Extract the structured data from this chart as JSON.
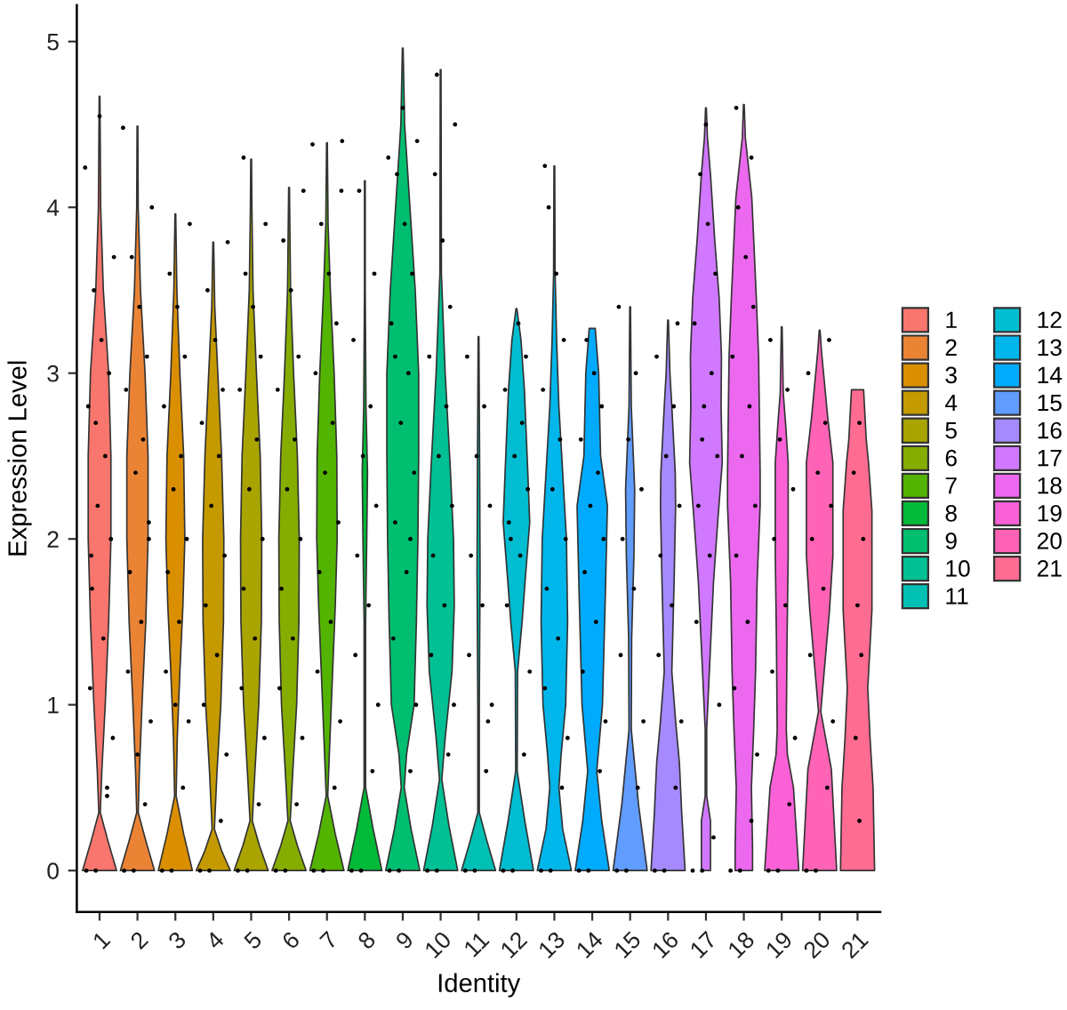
{
  "chart_data": {
    "type": "area",
    "xlabel": "Identity",
    "ylabel": "Expression Level",
    "xlim": [
      0.4,
      21.6
    ],
    "xticks": [
      1,
      2,
      3,
      4,
      5,
      6,
      7,
      8,
      9,
      10,
      11,
      12,
      13,
      14,
      15,
      16,
      17,
      18,
      19,
      20,
      21
    ],
    "ylim": [
      -0.25,
      5.22
    ],
    "yticks": [
      0,
      1,
      2,
      3,
      4,
      5
    ],
    "grid": false,
    "legend": "right",
    "series": [
      {
        "name": "1",
        "color": "#F8766D",
        "x": [
          1.45,
          1.22,
          1.02,
          1.06,
          1.15,
          1.24,
          1.3,
          1.3,
          1.24,
          1.1,
          1.03,
          1.01,
          0.99,
          0.97,
          0.9,
          0.76,
          0.7,
          0.7,
          0.76,
          0.85,
          0.94,
          0.98,
          0.78,
          0.55
        ],
        "values": [
          0,
          0.18,
          0.35,
          0.6,
          1.0,
          1.5,
          2.0,
          2.5,
          3.0,
          3.5,
          4.0,
          4.67,
          4.67,
          4.0,
          3.5,
          3.0,
          2.5,
          2.0,
          1.5,
          1.0,
          0.6,
          0.35,
          0.18,
          0
        ]
      },
      {
        "name": "2",
        "color": "#EB8335",
        "x": [
          2.45,
          2.22,
          2.02,
          2.05,
          2.12,
          2.22,
          2.28,
          2.28,
          2.2,
          2.08,
          2.02,
          2.01,
          1.99,
          1.98,
          1.92,
          1.8,
          1.72,
          1.72,
          1.78,
          1.88,
          1.95,
          1.98,
          1.78,
          1.55
        ],
        "values": [
          0,
          0.18,
          0.35,
          0.6,
          1.0,
          1.5,
          2.0,
          2.5,
          3.0,
          3.5,
          4.0,
          4.49,
          4.49,
          4.0,
          3.5,
          3.0,
          2.5,
          2.0,
          1.5,
          1.0,
          0.6,
          0.35,
          0.18,
          0
        ]
      },
      {
        "name": "3",
        "color": "#DA8F00",
        "x": [
          3.45,
          3.22,
          3.02,
          3.05,
          3.12,
          3.2,
          3.25,
          3.22,
          3.12,
          3.04,
          3.01,
          2.99,
          2.96,
          2.88,
          2.78,
          2.75,
          2.8,
          2.88,
          2.95,
          2.98,
          2.78,
          2.55
        ],
        "values": [
          0,
          0.22,
          0.45,
          0.8,
          1.2,
          1.6,
          2.0,
          2.5,
          3.0,
          3.5,
          3.96,
          3.96,
          3.5,
          3.0,
          2.5,
          2.0,
          1.6,
          1.2,
          0.8,
          0.45,
          0.22,
          0
        ]
      },
      {
        "name": "4",
        "color": "#C49A00",
        "x": [
          4.45,
          4.22,
          4.03,
          4.1,
          4.2,
          4.27,
          4.28,
          4.22,
          4.12,
          4.04,
          4.01,
          3.99,
          3.96,
          3.88,
          3.78,
          3.72,
          3.73,
          3.8,
          3.9,
          3.97,
          3.78,
          3.55
        ],
        "values": [
          0,
          0.12,
          0.25,
          0.6,
          1.0,
          1.5,
          2.0,
          2.5,
          3.0,
          3.4,
          3.79,
          3.79,
          3.4,
          3.0,
          2.5,
          2.0,
          1.5,
          1.0,
          0.6,
          0.25,
          0.12,
          0
        ]
      },
      {
        "name": "5",
        "color": "#A9A400",
        "x": [
          5.45,
          5.22,
          5.03,
          5.1,
          5.2,
          5.27,
          5.28,
          5.24,
          5.14,
          5.05,
          5.02,
          5.01,
          4.99,
          4.98,
          4.95,
          4.86,
          4.76,
          4.72,
          4.73,
          4.8,
          4.9,
          4.97,
          4.78,
          4.55
        ],
        "values": [
          0,
          0.15,
          0.3,
          0.6,
          1.0,
          1.5,
          2.0,
          2.5,
          3.0,
          3.5,
          4.0,
          4.29,
          4.29,
          4.0,
          3.5,
          3.0,
          2.5,
          2.0,
          1.5,
          1.0,
          0.6,
          0.3,
          0.15,
          0
        ]
      },
      {
        "name": "6",
        "color": "#85AD00",
        "x": [
          6.45,
          6.22,
          6.03,
          6.1,
          6.2,
          6.26,
          6.27,
          6.22,
          6.12,
          6.04,
          6.01,
          5.99,
          5.96,
          5.88,
          5.78,
          5.73,
          5.74,
          5.8,
          5.9,
          5.97,
          5.78,
          5.55
        ],
        "values": [
          0,
          0.15,
          0.3,
          0.6,
          1.0,
          1.5,
          2.0,
          2.5,
          3.0,
          3.5,
          4.12,
          4.12,
          3.5,
          3.0,
          2.5,
          2.0,
          1.5,
          1.0,
          0.6,
          0.3,
          0.15,
          0
        ]
      },
      {
        "name": "7",
        "color": "#53B400",
        "x": [
          7.45,
          7.22,
          7.02,
          7.08,
          7.15,
          7.22,
          7.27,
          7.26,
          7.19,
          7.09,
          7.03,
          7.01,
          6.99,
          6.97,
          6.91,
          6.81,
          6.74,
          6.73,
          6.78,
          6.85,
          6.92,
          6.98,
          6.78,
          6.55
        ],
        "values": [
          0,
          0.22,
          0.45,
          0.8,
          1.2,
          1.6,
          2.0,
          2.5,
          3.0,
          3.5,
          3.9,
          4.39,
          4.39,
          3.9,
          3.5,
          3.0,
          2.5,
          2.0,
          1.6,
          1.2,
          0.8,
          0.45,
          0.22,
          0
        ]
      },
      {
        "name": "8",
        "color": "#00BA38",
        "x": [
          8.45,
          8.22,
          8.02,
          8.02,
          8.05,
          8.07,
          8.03,
          8.01,
          8.01,
          7.99,
          7.99,
          7.97,
          7.93,
          7.95,
          7.98,
          7.98,
          7.78,
          7.55
        ],
        "values": [
          0,
          0.25,
          0.5,
          1.5,
          2.0,
          2.4,
          2.8,
          3.5,
          4.16,
          4.16,
          3.5,
          2.8,
          2.4,
          2.0,
          1.5,
          0.5,
          0.25,
          0
        ]
      },
      {
        "name": "9",
        "color": "#00BE70",
        "x": [
          9.45,
          9.22,
          9.04,
          9.1,
          9.3,
          9.36,
          9.4,
          9.42,
          9.42,
          9.33,
          9.19,
          9.05,
          9.01,
          8.99,
          8.95,
          8.81,
          8.67,
          8.58,
          8.58,
          8.6,
          8.64,
          8.7,
          8.9,
          8.96,
          8.78,
          8.55
        ],
        "values": [
          0,
          0.25,
          0.5,
          0.7,
          1.0,
          1.5,
          2.0,
          2.5,
          3.0,
          3.5,
          4.0,
          4.5,
          4.96,
          4.96,
          4.5,
          4.0,
          3.5,
          3.0,
          2.5,
          2.0,
          1.5,
          1.0,
          0.7,
          0.5,
          0.25,
          0
        ]
      },
      {
        "name": "10",
        "color": "#00C094",
        "x": [
          10.45,
          10.22,
          10.03,
          10.12,
          10.3,
          10.36,
          10.34,
          10.26,
          10.12,
          10.02,
          10.01,
          9.99,
          9.98,
          9.88,
          9.74,
          9.66,
          9.64,
          9.7,
          9.88,
          9.97,
          9.78,
          9.55
        ],
        "values": [
          0,
          0.27,
          0.55,
          0.8,
          1.2,
          1.6,
          2.0,
          2.4,
          3.0,
          3.6,
          4.83,
          4.83,
          3.6,
          3.0,
          2.4,
          2.0,
          1.6,
          1.2,
          0.8,
          0.55,
          0.27,
          0
        ]
      },
      {
        "name": "11",
        "color": "#00C0B4",
        "x": [
          11.45,
          11.22,
          11.02,
          11.02,
          11.04,
          11.03,
          11.01,
          10.99,
          10.97,
          10.96,
          10.98,
          10.98,
          10.78,
          10.55
        ],
        "values": [
          0,
          0.18,
          0.35,
          1.0,
          1.8,
          2.4,
          3.22,
          3.22,
          2.4,
          1.8,
          1.0,
          0.35,
          0.18,
          0
        ]
      },
      {
        "name": "12",
        "color": "#00BDD1",
        "x": [
          12.45,
          12.22,
          12.02,
          12.03,
          12.15,
          12.23,
          12.35,
          12.3,
          12.21,
          12.12,
          12.01,
          11.99,
          11.88,
          11.79,
          11.7,
          11.65,
          11.77,
          11.85,
          11.97,
          11.98,
          11.78,
          11.55
        ],
        "values": [
          0,
          0.3,
          0.6,
          1.2,
          1.5,
          1.75,
          2.1,
          2.4,
          2.9,
          3.2,
          3.39,
          3.39,
          3.2,
          2.9,
          2.4,
          2.1,
          1.75,
          1.5,
          1.2,
          0.6,
          0.3,
          0
        ]
      },
      {
        "name": "13",
        "color": "#00B6EB",
        "x": [
          13.45,
          13.22,
          13.12,
          13.18,
          13.3,
          13.35,
          13.32,
          13.22,
          13.12,
          13.06,
          13.02,
          13.01,
          12.99,
          12.98,
          12.94,
          12.88,
          12.78,
          12.68,
          12.65,
          12.7,
          12.82,
          12.88,
          12.78,
          12.55
        ],
        "values": [
          0,
          0.25,
          0.5,
          0.7,
          1.0,
          1.5,
          2.0,
          2.4,
          2.8,
          3.2,
          3.6,
          4.25,
          4.25,
          3.6,
          3.2,
          2.8,
          2.4,
          2.0,
          1.5,
          1.0,
          0.7,
          0.5,
          0.25,
          0
        ]
      },
      {
        "name": "14",
        "color": "#00ABFD",
        "x": [
          14.45,
          14.25,
          14.12,
          14.27,
          14.35,
          14.4,
          14.22,
          14.17,
          14.08,
          13.92,
          13.83,
          13.78,
          13.6,
          13.65,
          13.73,
          13.88,
          13.75,
          13.55
        ],
        "values": [
          0,
          0.3,
          0.6,
          1.0,
          1.7,
          2.2,
          2.5,
          3.0,
          3.27,
          3.27,
          3.0,
          2.5,
          2.2,
          1.7,
          1.0,
          0.6,
          0.3,
          0
        ]
      },
      {
        "name": "15",
        "color": "#619CFF",
        "x": [
          15.45,
          15.22,
          15.03,
          15.04,
          15.1,
          15.12,
          15.03,
          15.01,
          14.99,
          14.97,
          14.88,
          14.9,
          14.96,
          14.97,
          14.78,
          14.55
        ],
        "values": [
          0,
          0.4,
          0.85,
          1.4,
          1.9,
          2.3,
          2.8,
          3.4,
          3.4,
          2.8,
          2.3,
          1.9,
          1.4,
          0.85,
          0.4,
          0
        ]
      },
      {
        "name": "16",
        "color": "#A58AFF",
        "x": [
          16.45,
          16.36,
          16.3,
          16.2,
          16.1,
          16.16,
          16.2,
          16.19,
          16.1,
          16.05,
          16.01,
          15.99,
          15.95,
          15.9,
          15.81,
          15.8,
          15.84,
          15.9,
          15.8,
          15.7,
          15.64,
          15.55
        ],
        "values": [
          0,
          0.35,
          0.65,
          0.9,
          1.2,
          1.74,
          2.2,
          2.4,
          2.8,
          3.0,
          3.32,
          3.32,
          3.0,
          2.8,
          2.4,
          2.2,
          1.74,
          1.2,
          0.9,
          0.65,
          0.35,
          0
        ]
      },
      {
        "name": "17",
        "color": "#D078FF",
        "x": [
          17.12,
          17.12,
          17.02,
          17.02,
          17.09,
          17.2,
          17.31,
          17.43,
          17.4,
          17.41,
          17.35,
          17.23,
          17.12,
          17.04,
          17.01,
          16.99,
          16.96,
          16.88,
          16.77,
          16.65,
          16.59,
          16.6,
          16.57,
          16.69,
          16.8,
          16.91,
          16.98,
          16.98,
          16.88,
          16.88
        ],
        "values": [
          0,
          0.3,
          0.45,
          0.85,
          1.2,
          1.74,
          2.1,
          2.46,
          2.8,
          3.1,
          3.45,
          3.81,
          4.2,
          4.42,
          4.6,
          4.6,
          4.42,
          4.2,
          3.81,
          3.45,
          3.1,
          2.8,
          2.46,
          2.1,
          1.74,
          1.2,
          0.85,
          0.45,
          0.3,
          0
        ]
      },
      {
        "name": "18",
        "color": "#EB68EF",
        "x": [
          18.23,
          18.23,
          18.2,
          18.26,
          18.31,
          18.35,
          18.43,
          18.43,
          18.39,
          18.33,
          18.26,
          18.21,
          18.04,
          18.01,
          17.99,
          17.96,
          17.79,
          17.74,
          17.67,
          17.61,
          17.57,
          17.57,
          17.65,
          17.69,
          17.74,
          17.8,
          17.77,
          17.77
        ],
        "values": [
          0,
          0.14,
          0.5,
          0.85,
          1.2,
          1.74,
          2.2,
          2.4,
          3.1,
          3.45,
          3.81,
          4.06,
          4.42,
          4.62,
          4.62,
          4.42,
          4.06,
          3.81,
          3.45,
          3.1,
          2.4,
          2.2,
          1.74,
          1.2,
          0.85,
          0.5,
          0.14,
          0
        ]
      },
      {
        "name": "19",
        "color": "#FB61D7",
        "x": [
          19.45,
          19.31,
          19.15,
          19.12,
          19.14,
          19.17,
          19.17,
          19.1,
          19.04,
          19.01,
          18.99,
          18.96,
          18.9,
          18.83,
          18.83,
          18.86,
          18.88,
          18.85,
          18.69,
          18.55
        ],
        "values": [
          0,
          0.5,
          0.7,
          0.85,
          1.39,
          1.9,
          2.46,
          2.7,
          2.88,
          3.28,
          3.28,
          2.88,
          2.7,
          2.46,
          1.9,
          1.39,
          0.85,
          0.7,
          0.5,
          0
        ]
      },
      {
        "name": "20",
        "color": "#FF63B6",
        "x": [
          20.45,
          20.31,
          20.03,
          20.12,
          20.26,
          20.35,
          20.35,
          20.21,
          20.05,
          20.01,
          19.99,
          19.95,
          19.79,
          19.65,
          19.65,
          19.74,
          19.88,
          19.97,
          19.69,
          19.55
        ],
        "values": [
          0,
          0.61,
          0.96,
          1.2,
          1.57,
          1.9,
          2.46,
          2.74,
          3.13,
          3.26,
          3.26,
          3.13,
          2.74,
          2.46,
          1.9,
          1.57,
          1.2,
          0.96,
          0.61,
          0
        ]
      },
      {
        "name": "21",
        "color": "#FF6C91",
        "x": [
          21.45,
          21.41,
          21.33,
          21.27,
          21.38,
          21.38,
          21.29,
          21.23,
          21.16,
          20.84,
          20.77,
          20.71,
          20.62,
          20.62,
          20.73,
          20.67,
          20.59,
          20.55
        ],
        "values": [
          0,
          0.5,
          0.8,
          1.1,
          1.57,
          2.17,
          2.46,
          2.6,
          2.9,
          2.9,
          2.6,
          2.46,
          2.17,
          1.57,
          1.1,
          0.8,
          0.5,
          0
        ]
      },
      {
        "type": "scatter",
        "color": "#000000",
        "marker": "circle",
        "x": [
          0.65,
          0.9,
          1.2,
          1.35,
          0.75,
          1.1,
          0.8,
          1.3,
          0.95,
          1.15,
          0.7,
          1.25,
          1.05,
          0.85,
          1.38,
          0.62,
          1.0,
          1.2,
          0.9,
          0.78
        ],
        "values": [
          0,
          0,
          0.5,
          0.8,
          1.1,
          1.4,
          1.7,
          2.0,
          2.2,
          2.5,
          2.8,
          3.0,
          3.2,
          3.5,
          3.7,
          4.24,
          4.55,
          0.45,
          2.7,
          1.9
        ]
      },
      {
        "type": "scatter",
        "color": "#000000",
        "marker": "circle",
        "x": [
          1.65,
          1.9,
          2.2,
          2.35,
          1.75,
          2.1,
          1.8,
          2.3,
          1.95,
          2.15,
          1.7,
          2.25,
          2.05,
          1.85,
          2.38,
          1.62,
          2.0,
          2.3
        ],
        "values": [
          0,
          0,
          0.4,
          0.9,
          1.2,
          1.5,
          1.8,
          2.1,
          2.4,
          2.6,
          2.9,
          3.1,
          3.4,
          3.7,
          4.0,
          4.48,
          0.7,
          2.0
        ]
      },
      {
        "type": "scatter",
        "color": "#000000",
        "marker": "circle",
        "x": [
          2.65,
          2.9,
          3.2,
          3.35,
          2.75,
          3.1,
          2.8,
          3.3,
          2.95,
          3.15,
          2.7,
          3.25,
          3.05,
          2.85,
          3.38,
          3.0
        ],
        "values": [
          0,
          0,
          0.5,
          0.9,
          1.2,
          1.5,
          1.8,
          2.0,
          2.3,
          2.5,
          2.8,
          3.1,
          3.4,
          3.6,
          3.9,
          1.0
        ]
      },
      {
        "type": "scatter",
        "color": "#000000",
        "marker": "circle",
        "x": [
          3.65,
          3.9,
          4.2,
          4.35,
          3.75,
          4.1,
          3.8,
          4.3,
          3.95,
          4.15,
          3.7,
          4.25,
          4.05,
          3.85,
          4.38
        ],
        "values": [
          0,
          0,
          0.3,
          0.7,
          1.0,
          1.3,
          1.6,
          1.9,
          2.2,
          2.5,
          2.7,
          2.9,
          3.2,
          3.5,
          3.79
        ]
      },
      {
        "type": "scatter",
        "color": "#000000",
        "marker": "circle",
        "x": [
          4.65,
          4.9,
          5.2,
          5.35,
          4.75,
          5.1,
          4.8,
          5.3,
          4.95,
          5.15,
          4.7,
          5.25,
          5.05,
          4.85,
          5.38,
          4.8
        ],
        "values": [
          0,
          0,
          0.4,
          0.8,
          1.1,
          1.4,
          1.7,
          2.0,
          2.3,
          2.6,
          2.9,
          3.1,
          3.4,
          3.6,
          3.9,
          4.3
        ]
      },
      {
        "type": "scatter",
        "color": "#000000",
        "marker": "circle",
        "x": [
          5.65,
          5.9,
          6.2,
          6.35,
          5.75,
          6.1,
          5.8,
          6.3,
          5.95,
          6.15,
          5.7,
          6.25,
          6.05,
          5.85,
          6.38
        ],
        "values": [
          0,
          0,
          0.4,
          0.8,
          1.1,
          1.4,
          1.7,
          2.0,
          2.3,
          2.6,
          2.9,
          3.1,
          3.5,
          3.8,
          4.1
        ]
      },
      {
        "type": "scatter",
        "color": "#000000",
        "marker": "circle",
        "x": [
          6.65,
          6.9,
          7.2,
          7.35,
          6.75,
          7.1,
          6.8,
          7.3,
          6.95,
          7.15,
          6.7,
          7.25,
          7.05,
          6.85,
          7.38,
          6.62,
          7.4
        ],
        "values": [
          0,
          0,
          0.5,
          0.9,
          1.2,
          1.5,
          1.8,
          2.1,
          2.4,
          2.7,
          3.0,
          3.3,
          3.6,
          3.9,
          4.1,
          4.38,
          4.4
        ]
      },
      {
        "type": "scatter",
        "color": "#000000",
        "marker": "circle",
        "x": [
          7.65,
          7.9,
          8.2,
          8.35,
          7.75,
          8.1,
          7.8,
          8.3,
          7.95,
          8.15,
          7.7,
          8.25,
          7.85
        ],
        "values": [
          0,
          0,
          0.6,
          1.0,
          1.3,
          1.6,
          1.9,
          2.2,
          2.5,
          2.8,
          3.2,
          3.6,
          4.1
        ]
      },
      {
        "type": "scatter",
        "color": "#000000",
        "marker": "circle",
        "x": [
          8.65,
          8.9,
          9.2,
          9.35,
          8.75,
          9.1,
          8.8,
          9.3,
          8.95,
          9.15,
          8.7,
          9.25,
          9.05,
          8.85,
          9.38,
          8.62,
          9.0,
          9.2,
          8.8
        ],
        "values": [
          0,
          0,
          0.6,
          1.0,
          1.4,
          1.8,
          2.1,
          2.4,
          2.7,
          3.0,
          3.3,
          3.6,
          3.9,
          4.2,
          4.4,
          4.3,
          4.6,
          2.0,
          3.1
        ]
      },
      {
        "type": "scatter",
        "color": "#000000",
        "marker": "circle",
        "x": [
          9.65,
          9.9,
          10.2,
          10.35,
          9.75,
          10.1,
          9.8,
          10.3,
          9.95,
          10.15,
          9.7,
          10.25,
          10.05,
          9.85,
          10.38,
          9.9
        ],
        "values": [
          0,
          0,
          0.7,
          1.0,
          1.3,
          1.6,
          1.9,
          2.2,
          2.5,
          2.8,
          3.1,
          3.4,
          3.8,
          4.2,
          4.5,
          4.8
        ]
      },
      {
        "type": "scatter",
        "color": "#000000",
        "marker": "circle",
        "x": [
          10.65,
          10.9,
          11.2,
          11.35,
          10.75,
          11.1,
          10.8,
          11.3,
          10.95,
          11.15,
          10.7,
          11.25
        ],
        "values": [
          0,
          0,
          0.6,
          1.0,
          1.3,
          1.6,
          1.9,
          2.2,
          2.5,
          2.8,
          3.1,
          0.9
        ]
      },
      {
        "type": "scatter",
        "color": "#000000",
        "marker": "circle",
        "x": [
          11.65,
          11.9,
          12.2,
          12.35,
          11.75,
          12.1,
          11.8,
          12.3,
          11.95,
          12.15,
          11.7,
          12.25,
          12.05,
          11.85
        ],
        "values": [
          0,
          0,
          0.7,
          1.2,
          1.6,
          1.9,
          2.1,
          2.3,
          2.5,
          2.7,
          2.9,
          3.1,
          3.3,
          2.0
        ]
      },
      {
        "type": "scatter",
        "color": "#000000",
        "marker": "circle",
        "x": [
          12.65,
          12.9,
          13.2,
          13.35,
          12.75,
          13.1,
          12.8,
          13.3,
          12.95,
          13.15,
          12.7,
          13.25,
          13.05,
          12.85,
          12.75
        ],
        "values": [
          0,
          0,
          0.5,
          0.8,
          1.1,
          1.4,
          1.7,
          2.0,
          2.3,
          2.6,
          2.9,
          3.2,
          3.6,
          4.0,
          4.25
        ]
      },
      {
        "type": "scatter",
        "color": "#000000",
        "marker": "circle",
        "x": [
          13.65,
          13.9,
          14.2,
          14.35,
          13.75,
          14.1,
          13.8,
          14.3,
          13.95,
          14.15,
          13.7,
          14.25,
          14.05,
          13.85
        ],
        "values": [
          0,
          0,
          0.6,
          0.9,
          1.2,
          1.5,
          1.8,
          2.0,
          2.2,
          2.4,
          2.6,
          2.8,
          3.0,
          3.2
        ]
      },
      {
        "type": "scatter",
        "color": "#000000",
        "marker": "circle",
        "x": [
          14.65,
          14.9,
          15.2,
          15.35,
          14.75,
          15.1,
          14.8,
          15.3,
          14.95,
          15.15,
          14.7
        ],
        "values": [
          0,
          0,
          0.5,
          0.9,
          1.3,
          1.7,
          2.0,
          2.3,
          2.6,
          3.0,
          3.4
        ]
      },
      {
        "type": "scatter",
        "color": "#000000",
        "marker": "circle",
        "x": [
          15.65,
          15.9,
          16.2,
          16.35,
          15.75,
          16.1,
          15.8,
          16.3,
          15.95,
          16.15,
          15.7,
          16.25
        ],
        "values": [
          0,
          0,
          0.5,
          0.9,
          1.3,
          1.6,
          1.9,
          2.2,
          2.5,
          2.8,
          3.1,
          3.3
        ]
      },
      {
        "type": "scatter",
        "color": "#000000",
        "marker": "circle",
        "x": [
          16.65,
          16.9,
          17.2,
          17.35,
          16.75,
          17.1,
          16.8,
          17.3,
          16.95,
          17.15,
          16.7,
          17.25,
          17.05,
          16.85,
          17.0,
          16.9
        ],
        "values": [
          0,
          0,
          0.2,
          1.0,
          1.5,
          1.9,
          2.2,
          2.5,
          2.8,
          3.0,
          3.3,
          3.6,
          3.9,
          4.2,
          4.5,
          2.6
        ]
      },
      {
        "type": "scatter",
        "color": "#000000",
        "marker": "circle",
        "x": [
          17.65,
          17.9,
          18.2,
          18.35,
          17.75,
          18.1,
          17.8,
          18.3,
          17.95,
          18.15,
          17.7,
          18.25,
          18.05,
          17.85,
          18.2,
          17.8
        ],
        "values": [
          0,
          0,
          0.3,
          0.7,
          1.1,
          1.5,
          1.9,
          2.2,
          2.5,
          2.8,
          3.1,
          3.4,
          3.7,
          4.0,
          4.3,
          4.6
        ]
      },
      {
        "type": "scatter",
        "color": "#000000",
        "marker": "circle",
        "x": [
          18.65,
          18.9,
          19.2,
          19.35,
          18.75,
          19.1,
          18.8,
          19.3,
          18.95,
          19.15,
          18.7
        ],
        "values": [
          0,
          0,
          0.4,
          0.8,
          1.2,
          1.6,
          2.0,
          2.3,
          2.6,
          2.9,
          3.2
        ]
      },
      {
        "type": "scatter",
        "color": "#000000",
        "marker": "circle",
        "x": [
          19.65,
          19.9,
          20.2,
          20.35,
          19.75,
          20.1,
          19.8,
          20.3,
          19.95,
          20.15,
          19.7,
          20.25
        ],
        "values": [
          0,
          0,
          0.5,
          0.9,
          1.3,
          1.7,
          2.0,
          2.2,
          2.4,
          2.7,
          3.0,
          3.2
        ]
      },
      {
        "type": "scatter",
        "color": "#000000",
        "marker": "circle",
        "x": [
          21.05,
          20.95,
          21.1,
          21.0,
          21.15,
          20.9,
          21.05
        ],
        "values": [
          0.3,
          0.8,
          1.3,
          1.6,
          2.0,
          2.4,
          2.7
        ]
      }
    ]
  }
}
